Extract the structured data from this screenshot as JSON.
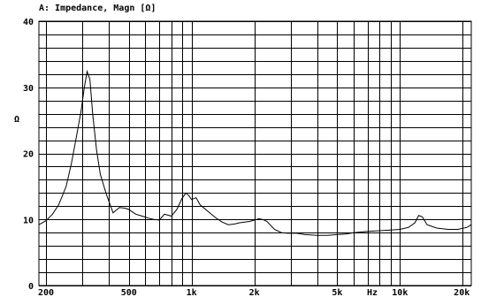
{
  "chart_data": {
    "type": "line",
    "title": "A: Impedance, Magn [Ω]",
    "ylabel": "Ω",
    "xlabel": "Hz",
    "x_scale": "log",
    "xlim": [
      185,
      22000
    ],
    "ylim": [
      0,
      40
    ],
    "grid": true,
    "y_ticks": [
      {
        "value": 0,
        "label": "0"
      },
      {
        "value": 10,
        "label": "10"
      },
      {
        "value": 20,
        "label": "20"
      },
      {
        "value": 30,
        "label": "30"
      },
      {
        "value": 40,
        "label": "40"
      }
    ],
    "x_ticks": [
      {
        "value": 200,
        "label": "200"
      },
      {
        "value": 500,
        "label": "500"
      },
      {
        "value": 1000,
        "label": "1k"
      },
      {
        "value": 2000,
        "label": "2k"
      },
      {
        "value": 5000,
        "label": "5k"
      },
      {
        "value": 10000,
        "label": "10k"
      },
      {
        "value": 20000,
        "label": "20k"
      }
    ],
    "x_grid": [
      200,
      300,
      400,
      500,
      600,
      700,
      800,
      900,
      1000,
      2000,
      3000,
      4000,
      5000,
      6000,
      7000,
      8000,
      9000,
      10000,
      20000
    ],
    "series": [
      {
        "x": [
          185,
          200,
          215,
          230,
          250,
          265,
          280,
          295,
          305,
          315,
          325,
          335,
          350,
          365,
          390,
          420,
          450,
          480,
          500,
          540,
          580,
          620,
          660,
          700,
          740,
          760,
          800,
          850,
          900,
          940,
          970,
          1000,
          1050,
          1100,
          1200,
          1300,
          1400,
          1500,
          1600,
          1700,
          1800,
          1900,
          2000,
          2100,
          2200,
          2300,
          2500,
          2700,
          2900,
          3200,
          3500,
          4000,
          4500,
          5000,
          5500,
          6000,
          7000,
          8000,
          9000,
          10000,
          11000,
          11800,
          12300,
          12800,
          13500,
          15000,
          17000,
          19000,
          21000,
          22000
        ],
        "y": [
          9.2,
          9.8,
          10.8,
          12.2,
          15.0,
          18.5,
          22.5,
          26.5,
          29.8,
          32.4,
          31.2,
          26.0,
          20.5,
          16.8,
          13.8,
          11.0,
          11.8,
          11.7,
          11.5,
          10.8,
          10.5,
          10.2,
          10.0,
          9.9,
          10.8,
          10.7,
          10.5,
          11.5,
          13.2,
          14.0,
          13.6,
          13.0,
          13.3,
          12.2,
          11.2,
          10.3,
          9.6,
          9.2,
          9.3,
          9.5,
          9.6,
          9.7,
          9.9,
          10.1,
          10.0,
          9.7,
          8.5,
          8.0,
          7.9,
          7.9,
          7.7,
          7.6,
          7.6,
          7.7,
          7.8,
          8.0,
          8.2,
          8.3,
          8.4,
          8.5,
          8.8,
          9.5,
          10.6,
          10.4,
          9.2,
          8.7,
          8.5,
          8.5,
          8.8,
          9.2
        ]
      }
    ]
  }
}
